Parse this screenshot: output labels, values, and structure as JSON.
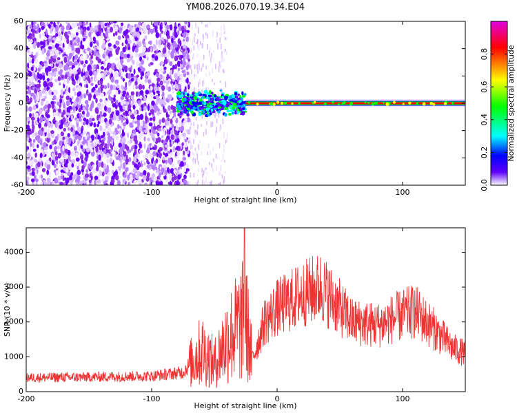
{
  "title": "YM08.2026.070.19.34.E04",
  "chart_data": [
    {
      "type": "heatmap",
      "name": "spectrogram",
      "xlabel": "Height of straight line (km)",
      "ylabel": "Frequency (Hz)",
      "xlim": [
        -200,
        150
      ],
      "ylim": [
        -60,
        60
      ],
      "xticks": [
        -200,
        -100,
        0,
        100
      ],
      "yticks": [
        -60,
        -40,
        -20,
        0,
        20,
        40,
        60
      ],
      "colorbar": {
        "label": "Normalized spectral amplitude",
        "range": [
          0.0,
          1.0
        ],
        "ticks": [
          0.0,
          0.2,
          0.4,
          0.6,
          0.8
        ],
        "colormap": [
          "#e000e0",
          "#ff0000",
          "#ffff00",
          "#00ff00",
          "#00ffff",
          "#0000ff",
          "#6000ff",
          "#ffffff"
        ]
      },
      "features": {
        "noise_region_x": [
          -200,
          -70
        ],
        "sparse_region_x": [
          -70,
          -40
        ],
        "broadband_region_x": [
          -80,
          -25
        ],
        "narrow_line_from_x": -25,
        "line_center_freq": 0,
        "line_peak_amplitude": 0.95
      }
    },
    {
      "type": "line",
      "name": "snr",
      "xlabel": "Height of straight line (km)",
      "ylabel": "SNR (10 * v/v)",
      "xlim": [
        -200,
        150
      ],
      "ylim": [
        0,
        4700
      ],
      "xticks": [
        -200,
        -100,
        0,
        100
      ],
      "yticks": [
        0,
        1000,
        2000,
        3000,
        4000
      ],
      "color": "#ee3333",
      "trend": [
        {
          "x": -200,
          "y": 400
        },
        {
          "x": -150,
          "y": 420
        },
        {
          "x": -100,
          "y": 450
        },
        {
          "x": -75,
          "y": 550
        },
        {
          "x": -60,
          "y": 1200
        },
        {
          "x": -50,
          "y": 800
        },
        {
          "x": -40,
          "y": 1500
        },
        {
          "x": -25,
          "y": 2100
        },
        {
          "x": -20,
          "y": 900
        },
        {
          "x": -10,
          "y": 2000
        },
        {
          "x": 0,
          "y": 2400
        },
        {
          "x": 20,
          "y": 2800
        },
        {
          "x": 35,
          "y": 3000
        },
        {
          "x": 45,
          "y": 2600
        },
        {
          "x": 60,
          "y": 2000
        },
        {
          "x": 80,
          "y": 1900
        },
        {
          "x": 100,
          "y": 2200
        },
        {
          "x": 110,
          "y": 2300
        },
        {
          "x": 125,
          "y": 1800
        },
        {
          "x": 140,
          "y": 1250
        },
        {
          "x": 150,
          "y": 1100
        }
      ],
      "spike": {
        "x": -26,
        "y": 4700
      }
    }
  ]
}
